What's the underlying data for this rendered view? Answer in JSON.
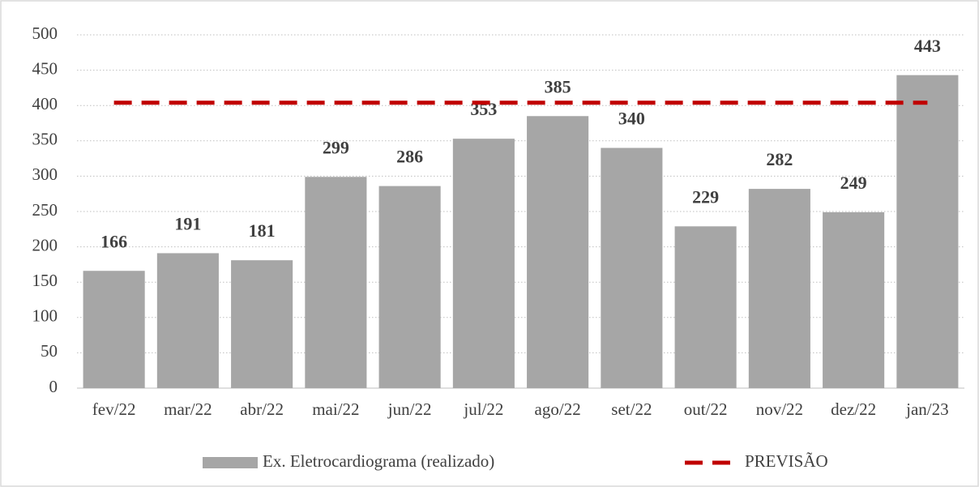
{
  "chart_data": {
    "type": "bar",
    "categories": [
      "fev/22",
      "mar/22",
      "abr/22",
      "mai/22",
      "jun/22",
      "jul/22",
      "ago/22",
      "set/22",
      "out/22",
      "nov/22",
      "dez/22",
      "jan/23"
    ],
    "series": [
      {
        "name": "Ex. Eletrocardiograma (realizado)",
        "type": "bar",
        "color": "#a6a6a6",
        "values": [
          166,
          191,
          181,
          299,
          286,
          353,
          385,
          340,
          229,
          282,
          249,
          443
        ]
      },
      {
        "name": "PREVISÃO",
        "type": "line",
        "color": "#c00000",
        "dashed": true,
        "values": [
          404,
          404,
          404,
          404,
          404,
          404,
          404,
          404,
          404,
          404,
          404,
          404
        ]
      }
    ],
    "ylim": [
      0,
      500
    ],
    "yticks": [
      0,
      50,
      100,
      150,
      200,
      250,
      300,
      350,
      400,
      450,
      500
    ],
    "grid": true,
    "legend": "bottom"
  }
}
